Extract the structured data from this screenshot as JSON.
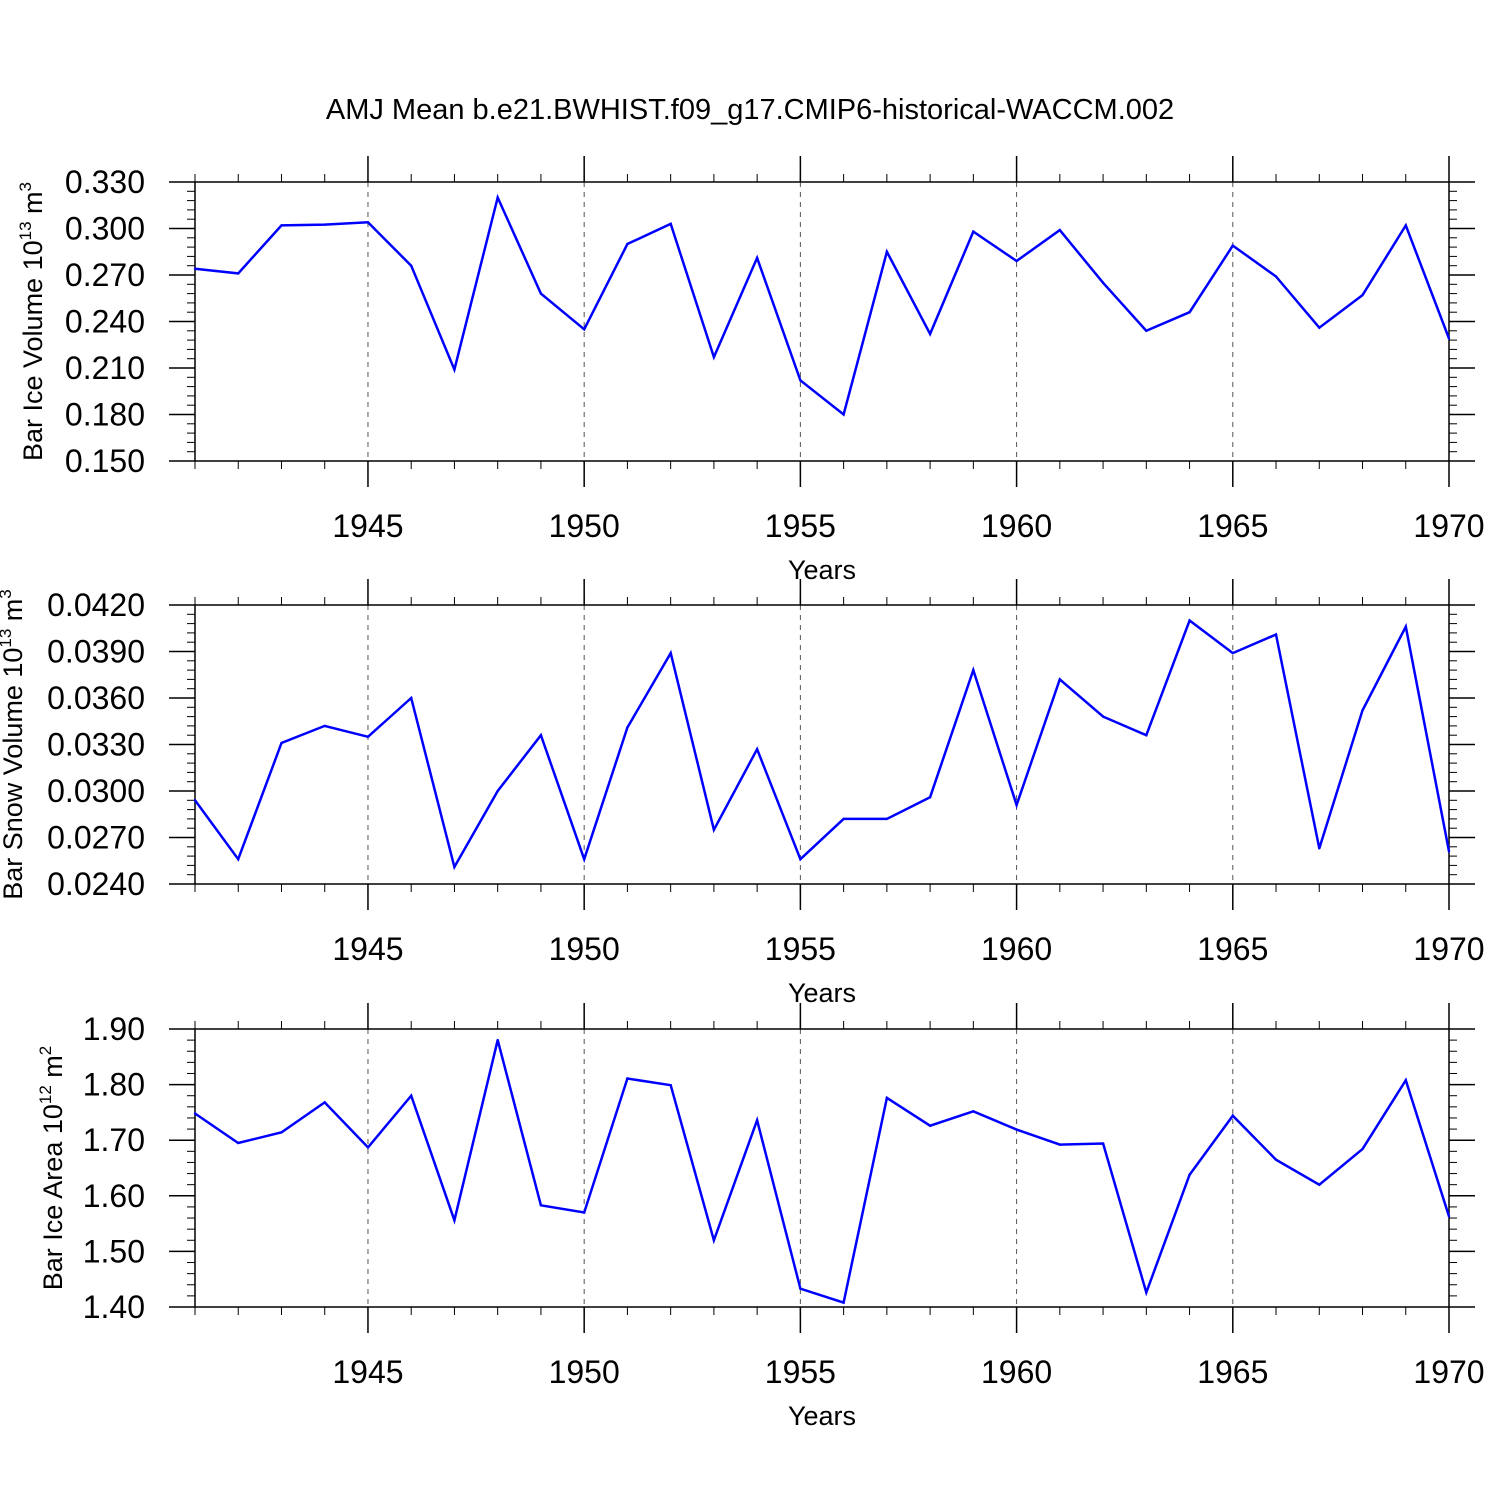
{
  "figure_title": "AMJ Mean b.e21.BWHIST.f09_g17.CMIP6-historical-WACCM.002",
  "colors": {
    "line": "#0000ff",
    "axis": "#000000",
    "grid": "#555555"
  },
  "chart_data": [
    {
      "type": "line",
      "title": "AMJ Mean b.e21.BWHIST.f09_g17.CMIP6-historical-WACCM.002",
      "xlabel": "Years",
      "ylabel": "Bar Ice Volume 10",
      "ylabel_exp": "13",
      "ylabel_unit": "m",
      "ylabel_unit_exp": "3",
      "xlim": [
        1941,
        1970
      ],
      "ylim": [
        0.15,
        0.33
      ],
      "xticks": [
        1945,
        1950,
        1955,
        1960,
        1965,
        1970
      ],
      "xtick_labels": [
        "1945",
        "1950",
        "1955",
        "1960",
        "1965",
        "1970"
      ],
      "yticks": [
        0.15,
        0.18,
        0.21,
        0.24,
        0.27,
        0.3,
        0.33
      ],
      "ytick_labels": [
        "0.150",
        "0.180",
        "0.210",
        "0.240",
        "0.270",
        "0.300",
        "0.330"
      ],
      "grid": "vertical dashed at major x ticks",
      "x": [
        1941,
        1942,
        1943,
        1944,
        1945,
        1946,
        1947,
        1948,
        1949,
        1950,
        1951,
        1952,
        1953,
        1954,
        1955,
        1956,
        1957,
        1958,
        1959,
        1960,
        1961,
        1962,
        1963,
        1964,
        1965,
        1966,
        1967,
        1968,
        1969,
        1970
      ],
      "values": [
        0.274,
        0.271,
        0.302,
        0.3025,
        0.304,
        0.276,
        0.209,
        0.32,
        0.258,
        0.235,
        0.29,
        0.303,
        0.217,
        0.281,
        0.202,
        0.18,
        0.285,
        0.232,
        0.298,
        0.279,
        0.299,
        0.265,
        0.234,
        0.246,
        0.289,
        0.269,
        0.236,
        0.257,
        0.302,
        0.229
      ]
    },
    {
      "type": "line",
      "xlabel": "Years",
      "ylabel": "Bar Snow Volume 10",
      "ylabel_exp": "13",
      "ylabel_unit": "m",
      "ylabel_unit_exp": "3",
      "xlim": [
        1941,
        1970
      ],
      "ylim": [
        0.024,
        0.042
      ],
      "xticks": [
        1945,
        1950,
        1955,
        1960,
        1965,
        1970
      ],
      "xtick_labels": [
        "1945",
        "1950",
        "1955",
        "1960",
        "1965",
        "1970"
      ],
      "yticks": [
        0.024,
        0.027,
        0.03,
        0.033,
        0.036,
        0.039,
        0.042
      ],
      "ytick_labels": [
        "0.0240",
        "0.0270",
        "0.0300",
        "0.0330",
        "0.0360",
        "0.0390",
        "0.0420"
      ],
      "grid": "vertical dashed at major x ticks",
      "x": [
        1941,
        1942,
        1943,
        1944,
        1945,
        1946,
        1947,
        1948,
        1949,
        1950,
        1951,
        1952,
        1953,
        1954,
        1955,
        1956,
        1957,
        1958,
        1959,
        1960,
        1961,
        1962,
        1963,
        1964,
        1965,
        1966,
        1967,
        1968,
        1969,
        1970
      ],
      "values": [
        0.0294,
        0.0256,
        0.0331,
        0.0342,
        0.0335,
        0.036,
        0.0251,
        0.03,
        0.0336,
        0.0256,
        0.0341,
        0.0389,
        0.0275,
        0.0327,
        0.0256,
        0.0282,
        0.0282,
        0.0296,
        0.0378,
        0.0291,
        0.0372,
        0.0348,
        0.0336,
        0.041,
        0.0389,
        0.0401,
        0.0263,
        0.0352,
        0.0406,
        0.0261
      ]
    },
    {
      "type": "line",
      "xlabel": "Years",
      "ylabel": "Bar Ice Area 10",
      "ylabel_exp": "12",
      "ylabel_unit": "m",
      "ylabel_unit_exp": "2",
      "xlim": [
        1941,
        1970
      ],
      "ylim": [
        1.4,
        1.9
      ],
      "xticks": [
        1945,
        1950,
        1955,
        1960,
        1965,
        1970
      ],
      "xtick_labels": [
        "1945",
        "1950",
        "1955",
        "1960",
        "1965",
        "1970"
      ],
      "yticks": [
        1.4,
        1.5,
        1.6,
        1.7,
        1.8,
        1.9
      ],
      "ytick_labels": [
        "1.40",
        "1.50",
        "1.60",
        "1.70",
        "1.80",
        "1.90"
      ],
      "grid": "vertical dashed at major x ticks",
      "x": [
        1941,
        1942,
        1943,
        1944,
        1945,
        1946,
        1947,
        1948,
        1949,
        1950,
        1951,
        1952,
        1953,
        1954,
        1955,
        1956,
        1957,
        1958,
        1959,
        1960,
        1961,
        1962,
        1963,
        1964,
        1965,
        1966,
        1967,
        1968,
        1969,
        1970
      ],
      "values": [
        1.748,
        1.695,
        1.714,
        1.768,
        1.687,
        1.78,
        1.556,
        1.88,
        1.583,
        1.57,
        1.811,
        1.799,
        1.52,
        1.736,
        1.433,
        1.408,
        1.776,
        1.726,
        1.752,
        1.719,
        1.692,
        1.694,
        1.426,
        1.638,
        1.744,
        1.665,
        1.62,
        1.684,
        1.808,
        1.563
      ]
    }
  ]
}
